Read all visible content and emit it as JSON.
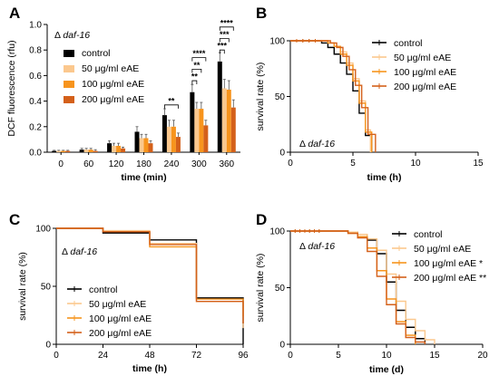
{
  "colors": {
    "control": "#000000",
    "c50": "#fbc88e",
    "c100": "#f7941d",
    "c200": "#d4601a"
  },
  "chart_data": [
    {
      "id": "A",
      "panel_label": "A",
      "type": "bar",
      "annotation": "Δ daf-16",
      "xlabel": "time (min)",
      "ylabel": "DCF fluorescence (rfu)",
      "ylim": [
        0,
        1.0
      ],
      "yticks": [
        "0.0",
        "0.2",
        "0.4",
        "0.6",
        "0.8",
        "1.0"
      ],
      "categories": [
        "0",
        "60",
        "120",
        "180",
        "240",
        "300",
        "360"
      ],
      "legend_position": "top-left",
      "series": [
        {
          "name": "control",
          "color": "#000000",
          "values": [
            0.01,
            0.02,
            0.07,
            0.16,
            0.29,
            0.47,
            0.71
          ],
          "errors": [
            0.005,
            0.01,
            0.02,
            0.04,
            0.05,
            0.06,
            0.07
          ]
        },
        {
          "name": "50 μg/ml eAE",
          "color": "#fbc88e",
          "values": [
            0.01,
            0.02,
            0.05,
            0.11,
            0.2,
            0.34,
            0.5
          ],
          "errors": [
            0.005,
            0.01,
            0.02,
            0.03,
            0.05,
            0.05,
            0.07
          ]
        },
        {
          "name": "100 μg/ml eAE",
          "color": "#f7941d",
          "values": [
            0.01,
            0.02,
            0.05,
            0.11,
            0.2,
            0.34,
            0.49
          ],
          "errors": [
            0.005,
            0.01,
            0.02,
            0.03,
            0.05,
            0.05,
            0.07
          ]
        },
        {
          "name": "200 μg/ml eAE",
          "color": "#d4601a",
          "values": [
            0.01,
            0.01,
            0.03,
            0.07,
            0.12,
            0.21,
            0.35
          ],
          "errors": [
            0.005,
            0.01,
            0.01,
            0.02,
            0.03,
            0.04,
            0.06
          ]
        }
      ],
      "significance": [
        {
          "category": "240",
          "from": 0,
          "to": 3,
          "label": "**",
          "y": 0.37
        },
        {
          "category": "300",
          "from": 0,
          "to": 1,
          "label": "**",
          "y": 0.56
        },
        {
          "category": "300",
          "from": 0,
          "to": 2,
          "label": "**",
          "y": 0.65
        },
        {
          "category": "300",
          "from": 0,
          "to": 3,
          "label": "****",
          "y": 0.74
        },
        {
          "category": "360",
          "from": 0,
          "to": 1,
          "label": "***",
          "y": 0.8
        },
        {
          "category": "360",
          "from": 0,
          "to": 2,
          "label": "***",
          "y": 0.89
        },
        {
          "category": "360",
          "from": 0,
          "to": 3,
          "label": "****",
          "y": 0.98
        }
      ]
    },
    {
      "id": "B",
      "panel_label": "B",
      "type": "line",
      "step": true,
      "annotation": "Δ daf-16",
      "xlabel": "time (h)",
      "ylabel": "survival rate (%)",
      "xlim": [
        0,
        15
      ],
      "ylim": [
        0,
        100
      ],
      "xticks": [
        "0",
        "5",
        "10",
        "15"
      ],
      "yticks": [
        "0",
        "50",
        "100"
      ],
      "legend_position": "top-right",
      "series": [
        {
          "name": "control",
          "color": "#000000",
          "x": [
            0,
            2.5,
            3.0,
            3.5,
            4.0,
            4.5,
            5.0,
            5.5,
            6.0,
            6.5
          ],
          "y": [
            100,
            98,
            94,
            88,
            80,
            70,
            55,
            35,
            15,
            0
          ]
        },
        {
          "name": "50 μg/ml eAE",
          "color": "#fbc88e",
          "x": [
            0,
            3.0,
            3.5,
            4.0,
            4.5,
            5.0,
            5.5,
            6.0,
            6.4
          ],
          "y": [
            100,
            98,
            95,
            90,
            80,
            66,
            46,
            20,
            0
          ]
        },
        {
          "name": "100 μg/ml eAE",
          "color": "#f7941d",
          "x": [
            0,
            3.0,
            3.5,
            4.0,
            4.5,
            5.0,
            5.5,
            6.0,
            6.5
          ],
          "y": [
            100,
            98,
            95,
            88,
            78,
            64,
            44,
            18,
            0
          ]
        },
        {
          "name": "200 μg/ml eAE",
          "color": "#d4601a",
          "x": [
            0,
            3.2,
            3.7,
            4.2,
            4.7,
            5.2,
            5.7,
            6.2,
            6.8
          ],
          "y": [
            100,
            98,
            94,
            86,
            74,
            60,
            40,
            16,
            0
          ]
        }
      ]
    },
    {
      "id": "C",
      "panel_label": "C",
      "type": "line",
      "step": true,
      "annotation": "Δ daf-16",
      "xlabel": "time (h)",
      "ylabel": "survival rate (%)",
      "xlim": [
        0,
        96
      ],
      "ylim": [
        0,
        100
      ],
      "xticks": [
        "0",
        "24",
        "48",
        "72",
        "96"
      ],
      "yticks": [
        "0",
        "50",
        "100"
      ],
      "legend_position": "bottom-left",
      "series": [
        {
          "name": "control",
          "color": "#000000",
          "x": [
            0,
            24,
            48,
            72,
            96
          ],
          "y": [
            100,
            96,
            90,
            40,
            0
          ]
        },
        {
          "name": "50 μg/ml eAE",
          "color": "#fbc88e",
          "x": [
            0,
            24,
            48,
            72,
            96
          ],
          "y": [
            100,
            98,
            87,
            37,
            14
          ]
        },
        {
          "name": "100 μg/ml eAE",
          "color": "#f7941d",
          "x": [
            0,
            24,
            48,
            72,
            96
          ],
          "y": [
            100,
            97,
            84,
            39,
            24
          ]
        },
        {
          "name": "200 μg/ml eAE",
          "color": "#d4601a",
          "x": [
            0,
            24,
            48,
            72,
            96
          ],
          "y": [
            100,
            97,
            86,
            37,
            18
          ]
        }
      ]
    },
    {
      "id": "D",
      "panel_label": "D",
      "type": "line",
      "step": true,
      "annotation": "Δ daf-16",
      "xlabel": "time (d)",
      "ylabel": "survival rate (%)",
      "xlim": [
        0,
        20
      ],
      "ylim": [
        0,
        100
      ],
      "xticks": [
        "0",
        "5",
        "10",
        "15",
        "20"
      ],
      "yticks": [
        "0",
        "50",
        "100"
      ],
      "legend_position": "top-right",
      "series": [
        {
          "name": "control",
          "color": "#000000",
          "x": [
            0,
            6,
            7,
            8,
            9,
            10,
            11,
            12,
            13,
            14
          ],
          "y": [
            100,
            99,
            97,
            92,
            80,
            55,
            30,
            15,
            5,
            0
          ]
        },
        {
          "name": "50 μg/ml eAE",
          "color": "#fbc88e",
          "x": [
            0,
            6,
            7,
            8,
            9,
            10,
            11,
            12,
            13,
            14,
            15
          ],
          "y": [
            100,
            99,
            97,
            93,
            83,
            62,
            38,
            22,
            12,
            4,
            0
          ]
        },
        {
          "name": "100 μg/ml eAE",
          "color": "#f7941d",
          "x": [
            0,
            6,
            7,
            8,
            9,
            10,
            11,
            12,
            13
          ],
          "y": [
            100,
            98,
            95,
            85,
            65,
            40,
            20,
            8,
            0
          ]
        },
        {
          "name": "200 μg/ml eAE",
          "color": "#d4601a",
          "x": [
            0,
            6,
            7,
            8,
            9,
            10,
            11,
            12,
            13,
            14
          ],
          "y": [
            100,
            98,
            94,
            82,
            60,
            35,
            18,
            6,
            2,
            0
          ]
        }
      ],
      "legend_suffixes": [
        "",
        "",
        " *",
        " **"
      ]
    }
  ]
}
